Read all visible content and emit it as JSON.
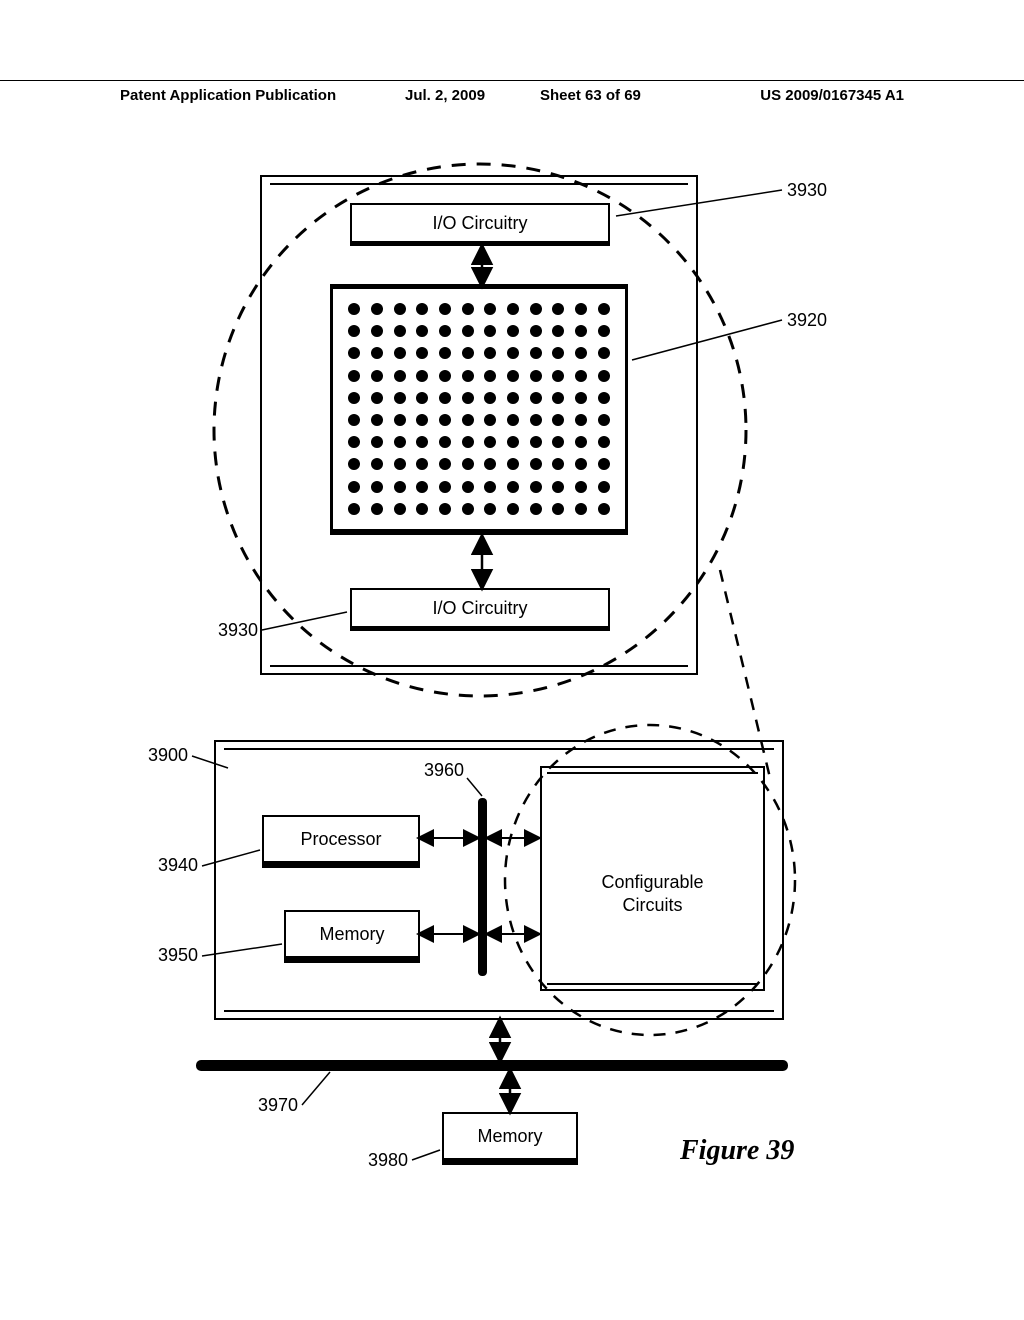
{
  "header": {
    "publication_type": "Patent Application Publication",
    "date": "Jul. 2, 2009",
    "sheet": "Sheet 63 of 69",
    "pub_number": "US 2009/0167345 A1"
  },
  "figure": {
    "label": "Figure 39",
    "top_box": {
      "io_top": {
        "label": "I/O Circuitry",
        "ref": "3930"
      },
      "dotgrid": {
        "rows": 10,
        "cols": 12,
        "ref": "3920"
      },
      "io_bottom": {
        "label": "I/O Circuitry",
        "ref": "3930"
      }
    },
    "bottom_box": {
      "ref": "3900",
      "processor": {
        "label": "Processor",
        "ref": "3940"
      },
      "memory_internal": {
        "label": "Memory",
        "ref": "3950"
      },
      "bus_internal": {
        "ref": "3960"
      },
      "configurable": {
        "label_line1": "Configurable",
        "label_line2": "Circuits"
      }
    },
    "bus_external": {
      "ref": "3970"
    },
    "memory_external": {
      "label": "Memory",
      "ref": "3980"
    }
  },
  "style": {
    "dashed_circle": {
      "stroke": "#000",
      "stroke_width": 3,
      "dash": "14,11"
    },
    "dashed_ellipse": {
      "stroke": "#000",
      "stroke_width": 2.5,
      "dash": "12,10"
    },
    "leader_stroke": "#000",
    "leader_width": 1.5
  }
}
